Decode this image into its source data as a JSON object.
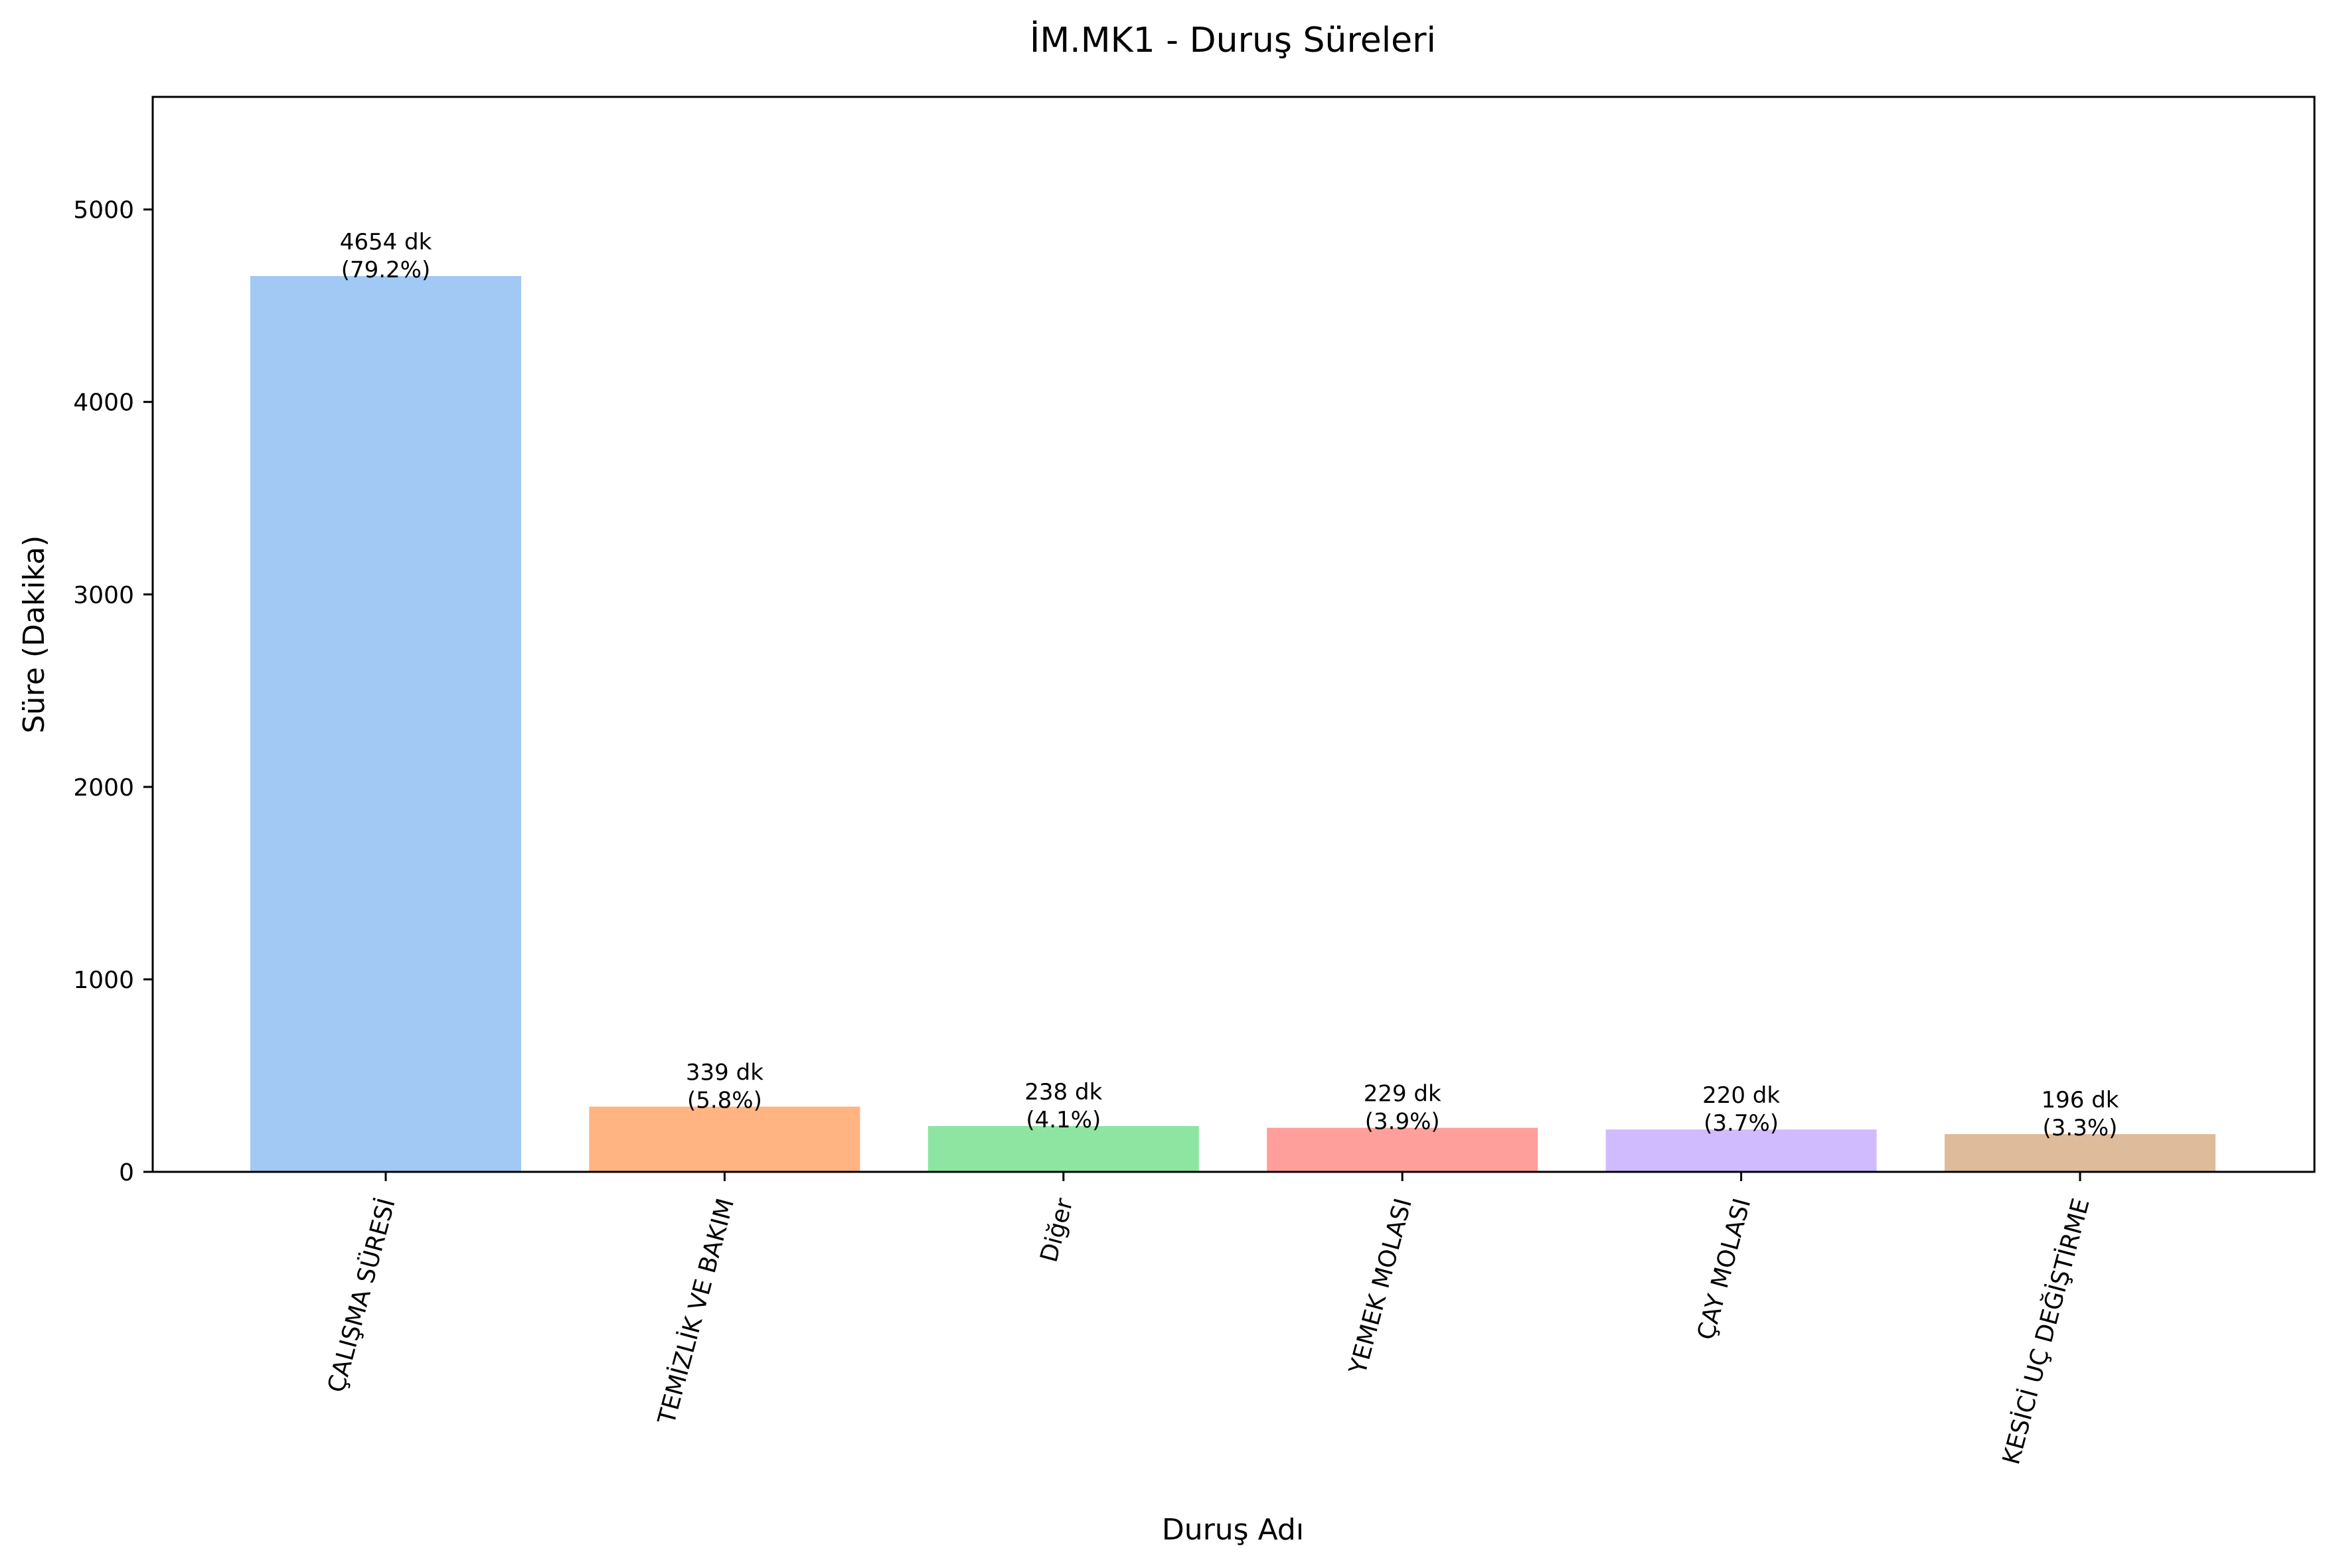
{
  "chart_data": {
    "type": "bar",
    "title": "İM.MK1 - Duruş Süreleri",
    "xlabel": "Duruş Adı",
    "ylabel": "Süre (Dakika)",
    "ylim": [
      0,
      5585
    ],
    "yticks": [
      0,
      1000,
      2000,
      3000,
      4000,
      5000
    ],
    "categories": [
      "ÇALIŞMA SÜRESİ",
      "TEMİZLİK VE BAKIM",
      "Diğer",
      "YEMEK MOLASI",
      "ÇAY MOLASI",
      "KESİCİ UÇ DEĞİŞTİRME"
    ],
    "values": [
      4654,
      339,
      238,
      229,
      220,
      196
    ],
    "value_labels": [
      "4654 dk",
      "339 dk",
      "238 dk",
      "229 dk",
      "220 dk",
      "196 dk"
    ],
    "percent_labels": [
      "(79.2%)",
      "(5.8%)",
      "(4.1%)",
      "(3.9%)",
      "(3.7%)",
      "(3.3%)"
    ],
    "colors": [
      "#a1c9f4",
      "#ffb482",
      "#8de5a1",
      "#ff9f9b",
      "#d0bbff",
      "#debb9b"
    ],
    "grid": false,
    "legend": "none"
  }
}
